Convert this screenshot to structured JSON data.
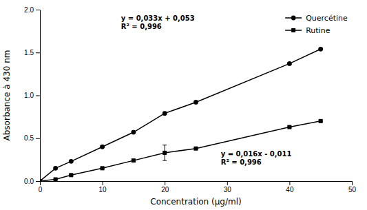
{
  "chart_data": {
    "type": "line",
    "xlabel": "Concentration (µg/ml)",
    "ylabel": "Absorbance à 430 nm",
    "x": [
      0,
      2.5,
      5,
      10,
      15,
      20,
      25,
      40,
      45
    ],
    "series": [
      {
        "name": "Quercétine",
        "color": "black",
        "marker": "circle",
        "line_style": "solid",
        "values": [
          0.0,
          0.15,
          0.23,
          0.4,
          0.57,
          0.79,
          0.92,
          1.37,
          1.54
        ],
        "errors": [
          0.0,
          0.01,
          0.01,
          0.01,
          0.01,
          0.01,
          0.01,
          0.01,
          0.01
        ]
      },
      {
        "name": "Rutine",
        "color": "black",
        "marker": "square",
        "line_style": "solid",
        "values": [
          0.0,
          0.02,
          0.07,
          0.15,
          0.24,
          0.33,
          0.38,
          0.63,
          0.7
        ],
        "errors": [
          0.0,
          0.005,
          0.005,
          0.005,
          0.005,
          0.09,
          0.01,
          0.005,
          0.005
        ]
      }
    ],
    "annotations": [
      [
        "y = 0,033x + 0,053",
        "R² = 0,996"
      ],
      [
        "y = 0,016x - 0,011",
        "R² = 0,996"
      ]
    ],
    "xlim": [
      0,
      50
    ],
    "ylim": [
      0,
      2.0
    ],
    "xticks": [
      0,
      10,
      20,
      30,
      40,
      50
    ],
    "yticks": [
      {
        "value": 0,
        "label": "0.0"
      },
      0.5,
      {
        "value": 1,
        "label": "1.0"
      },
      1.5,
      {
        "value": 2,
        "label": "2.0"
      }
    ],
    "legend": "upper right",
    "grid": false
  }
}
